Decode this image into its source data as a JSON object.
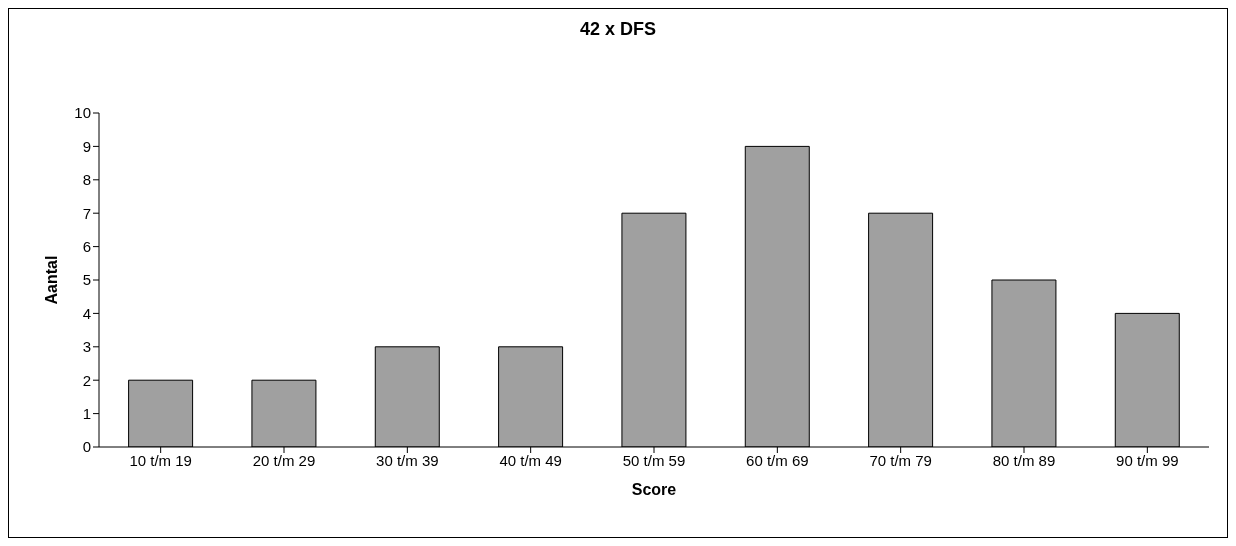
{
  "chart_data": {
    "type": "bar",
    "title": "42 x DFS",
    "xlabel": "Score",
    "ylabel": "Aantal",
    "categories": [
      "10 t/m 19",
      "20 t/m 29",
      "30 t/m 39",
      "40 t/m 49",
      "50 t/m 59",
      "60 t/m 69",
      "70 t/m 79",
      "80 t/m 89",
      "90 t/m 99"
    ],
    "values": [
      2,
      2,
      3,
      3,
      7,
      9,
      7,
      5,
      4
    ],
    "color": "#a0a0a0",
    "ylim": [
      0,
      10
    ],
    "yticks": [
      0,
      1,
      2,
      3,
      4,
      5,
      6,
      7,
      8,
      9,
      10
    ],
    "grid": false,
    "legend": false
  }
}
